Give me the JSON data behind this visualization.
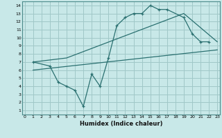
{
  "xlabel": "Humidex (Indice chaleur)",
  "bg_color": "#c8e8e8",
  "grid_color": "#a0c8c8",
  "line_color": "#2a7070",
  "line1_x": [
    1,
    3,
    4,
    5,
    6,
    7,
    8,
    9,
    10,
    11,
    12,
    13,
    14,
    15,
    16,
    17,
    19,
    20,
    21,
    22
  ],
  "line1_y": [
    7.0,
    6.5,
    4.5,
    4.0,
    3.5,
    1.5,
    5.5,
    4.0,
    7.5,
    11.5,
    12.5,
    13.0,
    13.0,
    14.0,
    13.5,
    13.5,
    12.5,
    10.5,
    9.5,
    9.5
  ],
  "line2_x": [
    1,
    23
  ],
  "line2_y": [
    6.0,
    8.5
  ],
  "line3_x": [
    1,
    5,
    19,
    23
  ],
  "line3_y": [
    7.0,
    7.5,
    13.0,
    9.5
  ],
  "xlim": [
    -0.3,
    23.3
  ],
  "ylim": [
    0.5,
    14.5
  ],
  "xticks": [
    0,
    1,
    2,
    3,
    4,
    5,
    6,
    7,
    8,
    9,
    10,
    11,
    12,
    13,
    14,
    15,
    16,
    17,
    18,
    19,
    20,
    21,
    22,
    23
  ],
  "yticks": [
    1,
    2,
    3,
    4,
    5,
    6,
    7,
    8,
    9,
    10,
    11,
    12,
    13,
    14
  ]
}
